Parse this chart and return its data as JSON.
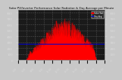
{
  "title": "Solar PV/Inverter Performance Solar Radiation & Day Average per Minute",
  "bg_color": "#c8c8c8",
  "plot_bg_color": "#1a1a1a",
  "area_color": "#ff0000",
  "line_color": "#0000cc",
  "grid_color": "#555555",
  "ylabel_left_ticks": [
    0,
    100,
    200,
    300,
    400,
    500,
    600,
    700,
    800
  ],
  "ylabel_right_ticks": [
    0,
    100,
    200,
    300,
    400,
    500,
    600,
    700,
    800
  ],
  "y_max": 850,
  "y_min": 0,
  "avg_value": 270,
  "n_points": 480,
  "legend_label_solar": "Solar Rad",
  "legend_label_avg": "Day Avg",
  "legend_color_solar": "#ff0000",
  "legend_color_avg": "#0000ff",
  "title_fontsize": 3.0,
  "tick_fontsize": 3.0
}
